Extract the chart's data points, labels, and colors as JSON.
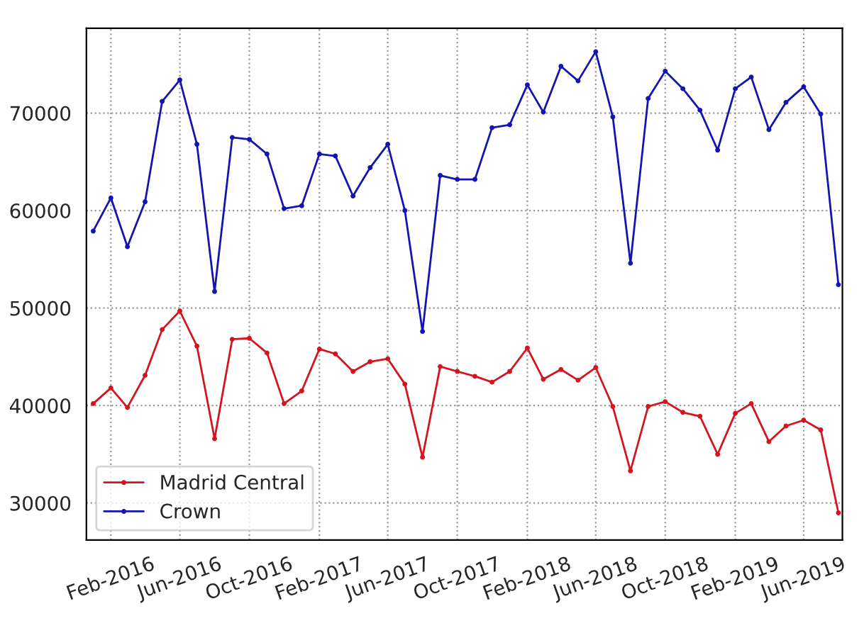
{
  "chart_data": {
    "type": "line",
    "x": [
      "2016-01",
      "2016-02",
      "2016-03",
      "2016-04",
      "2016-05",
      "2016-06",
      "2016-07",
      "2016-08",
      "2016-09",
      "2016-10",
      "2016-11",
      "2016-12",
      "2017-01",
      "2017-02",
      "2017-03",
      "2017-04",
      "2017-05",
      "2017-06",
      "2017-07",
      "2017-08",
      "2017-09",
      "2017-10",
      "2017-11",
      "2017-12",
      "2018-01",
      "2018-02",
      "2018-03",
      "2018-04",
      "2018-05",
      "2018-06",
      "2018-07",
      "2018-08",
      "2018-09",
      "2018-10",
      "2018-11",
      "2018-12",
      "2019-01",
      "2019-02",
      "2019-03",
      "2019-04",
      "2019-05",
      "2019-06",
      "2019-07",
      "2019-08"
    ],
    "series": [
      {
        "name": "Madrid Central",
        "color": "#d4141e",
        "values": [
          40200,
          41800,
          39800,
          43100,
          47800,
          49700,
          46100,
          36600,
          46800,
          46900,
          45400,
          40200,
          41500,
          45800,
          45300,
          43500,
          44500,
          44800,
          42200,
          34700,
          44000,
          43500,
          43000,
          42400,
          43500,
          45900,
          42700,
          43700,
          42600,
          43900,
          39900,
          33300,
          39900,
          40400,
          39300,
          38900,
          35000,
          39200,
          40200,
          36300,
          37900,
          38500,
          37500,
          29000
        ]
      },
      {
        "name": "Crown",
        "color": "#1414b0",
        "values": [
          57900,
          61300,
          56300,
          60900,
          71200,
          73400,
          66800,
          51700,
          67500,
          67300,
          65800,
          60200,
          60500,
          65800,
          65600,
          61500,
          64400,
          66800,
          60000,
          47600,
          63600,
          63200,
          63200,
          68500,
          68800,
          72900,
          70100,
          74800,
          73300,
          76300,
          69600,
          54600,
          71500,
          74300,
          72500,
          70300,
          66200,
          72500,
          73700,
          68300,
          71100,
          72700,
          69900,
          52400
        ]
      }
    ],
    "xlim": [
      "2015-12-20",
      "2019-08-08"
    ],
    "xticks": [
      {
        "value": "2016-02",
        "label": "Feb-2016"
      },
      {
        "value": "2016-06",
        "label": "Jun-2016"
      },
      {
        "value": "2016-10",
        "label": "Oct-2016"
      },
      {
        "value": "2017-02",
        "label": "Feb-2017"
      },
      {
        "value": "2017-06",
        "label": "Jun-2017"
      },
      {
        "value": "2017-10",
        "label": "Oct-2017"
      },
      {
        "value": "2018-02",
        "label": "Feb-2018"
      },
      {
        "value": "2018-06",
        "label": "Jun-2018"
      },
      {
        "value": "2018-10",
        "label": "Oct-2018"
      },
      {
        "value": "2019-02",
        "label": "Feb-2019"
      },
      {
        "value": "2019-06",
        "label": "Jun-2019"
      }
    ],
    "ylim": [
      26200,
      78700
    ],
    "yticks": [
      30000,
      40000,
      50000,
      60000,
      70000
    ],
    "grid": true,
    "legend": "bottom left",
    "marker": "circle",
    "line_style": "solid"
  }
}
